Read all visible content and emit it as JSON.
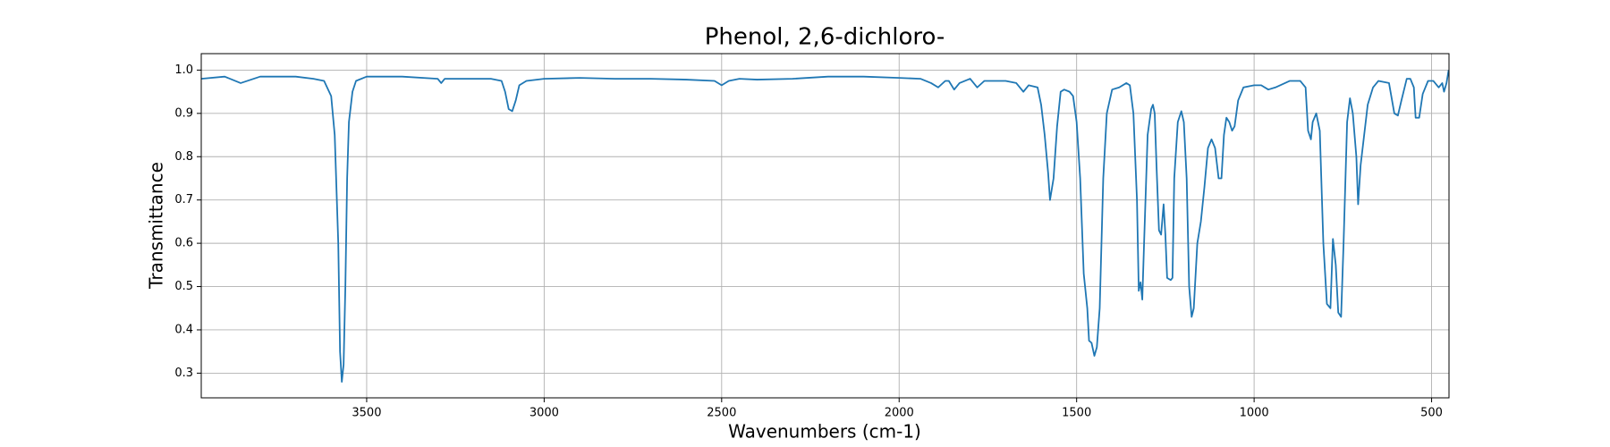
{
  "chart_data": {
    "type": "line",
    "title": "Phenol, 2,6-dichloro-",
    "xlabel": "Wavenumbers (cm-1)",
    "ylabel": "Transmittance",
    "color": "#1f77b4",
    "grid": true,
    "xlim": [
      3966,
      451
    ],
    "ylim": [
      0.243,
      1.038
    ],
    "xticks": [
      3500,
      3000,
      2500,
      2000,
      1500,
      1000,
      500
    ],
    "yticks": [
      0.3,
      0.4,
      0.5,
      0.6,
      0.7,
      0.8,
      0.9,
      {
        "value": 1,
        "label": "1.0"
      }
    ],
    "x": [
      3966,
      3900,
      3855,
      3800,
      3700,
      3650,
      3620,
      3600,
      3590,
      3580,
      3575,
      3570,
      3565,
      3560,
      3555,
      3550,
      3540,
      3530,
      3500,
      3400,
      3300,
      3290,
      3280,
      3150,
      3120,
      3110,
      3100,
      3090,
      3080,
      3070,
      3050,
      3000,
      2900,
      2800,
      2700,
      2600,
      2520,
      2500,
      2480,
      2450,
      2400,
      2300,
      2200,
      2100,
      2000,
      1940,
      1910,
      1890,
      1870,
      1860,
      1845,
      1830,
      1800,
      1780,
      1760,
      1700,
      1670,
      1650,
      1635,
      1610,
      1600,
      1590,
      1580,
      1575,
      1565,
      1555,
      1545,
      1535,
      1520,
      1510,
      1500,
      1490,
      1480,
      1470,
      1465,
      1458,
      1450,
      1443,
      1435,
      1425,
      1415,
      1400,
      1380,
      1360,
      1350,
      1340,
      1330,
      1325,
      1320,
      1315,
      1310,
      1300,
      1290,
      1285,
      1280,
      1275,
      1268,
      1262,
      1258,
      1255,
      1250,
      1245,
      1235,
      1230,
      1225,
      1215,
      1205,
      1198,
      1190,
      1183,
      1176,
      1170,
      1160,
      1150,
      1140,
      1130,
      1120,
      1110,
      1100,
      1092,
      1085,
      1078,
      1070,
      1062,
      1055,
      1045,
      1030,
      1000,
      980,
      960,
      940,
      900,
      870,
      855,
      848,
      840,
      835,
      825,
      815,
      805,
      795,
      785,
      778,
      770,
      763,
      755,
      748,
      738,
      730,
      722,
      712,
      707,
      700,
      690,
      680,
      665,
      650,
      620,
      605,
      595,
      585,
      570,
      560,
      550,
      545,
      535,
      525,
      510,
      495,
      480,
      470,
      465,
      458,
      452
    ],
    "values": [
      0.98,
      0.985,
      0.97,
      0.985,
      0.985,
      0.98,
      0.975,
      0.94,
      0.85,
      0.6,
      0.35,
      0.28,
      0.32,
      0.5,
      0.75,
      0.88,
      0.95,
      0.975,
      0.985,
      0.985,
      0.98,
      0.97,
      0.98,
      0.98,
      0.975,
      0.95,
      0.91,
      0.905,
      0.93,
      0.965,
      0.975,
      0.98,
      0.982,
      0.98,
      0.98,
      0.978,
      0.975,
      0.965,
      0.975,
      0.98,
      0.978,
      0.98,
      0.985,
      0.985,
      0.982,
      0.98,
      0.97,
      0.96,
      0.975,
      0.975,
      0.955,
      0.97,
      0.98,
      0.96,
      0.975,
      0.975,
      0.97,
      0.95,
      0.965,
      0.96,
      0.92,
      0.85,
      0.76,
      0.7,
      0.75,
      0.87,
      0.95,
      0.955,
      0.95,
      0.94,
      0.88,
      0.75,
      0.53,
      0.45,
      0.375,
      0.37,
      0.34,
      0.36,
      0.45,
      0.75,
      0.9,
      0.955,
      0.96,
      0.97,
      0.965,
      0.9,
      0.7,
      0.49,
      0.51,
      0.47,
      0.6,
      0.85,
      0.91,
      0.92,
      0.9,
      0.78,
      0.63,
      0.62,
      0.66,
      0.69,
      0.62,
      0.52,
      0.515,
      0.52,
      0.75,
      0.88,
      0.905,
      0.88,
      0.75,
      0.5,
      0.43,
      0.45,
      0.6,
      0.65,
      0.73,
      0.82,
      0.84,
      0.82,
      0.75,
      0.75,
      0.85,
      0.89,
      0.88,
      0.86,
      0.87,
      0.93,
      0.96,
      0.965,
      0.965,
      0.955,
      0.96,
      0.975,
      0.975,
      0.96,
      0.86,
      0.84,
      0.88,
      0.9,
      0.86,
      0.6,
      0.46,
      0.45,
      0.61,
      0.55,
      0.44,
      0.43,
      0.6,
      0.88,
      0.935,
      0.9,
      0.8,
      0.69,
      0.78,
      0.85,
      0.92,
      0.96,
      0.975,
      0.97,
      0.9,
      0.895,
      0.93,
      0.98,
      0.98,
      0.96,
      0.89,
      0.89,
      0.945,
      0.975,
      0.975,
      0.96,
      0.97,
      0.95,
      0.97,
      1.0
    ]
  }
}
